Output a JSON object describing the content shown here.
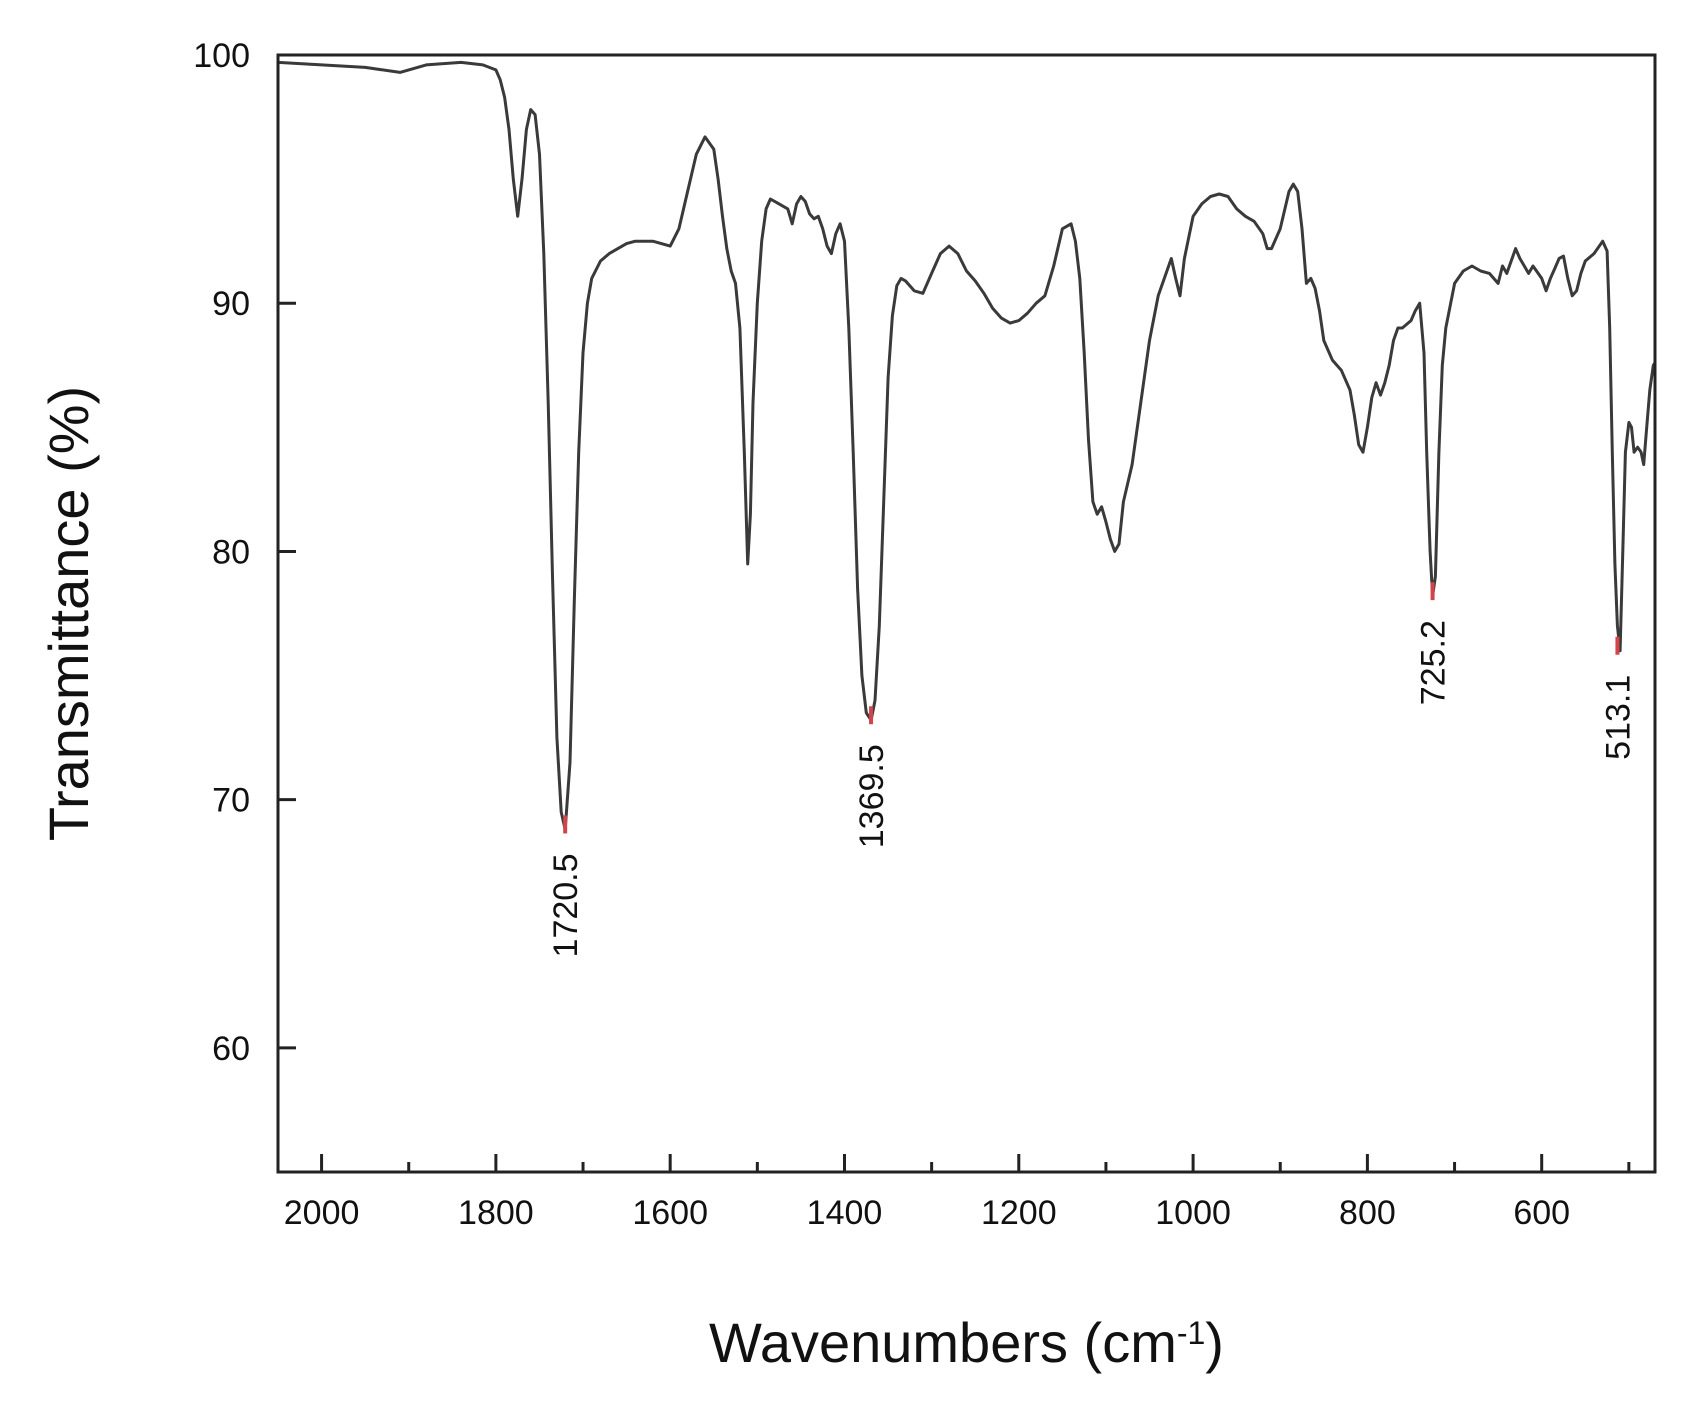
{
  "chart_data": {
    "type": "line",
    "xlabel": "Wavenumbers (cm",
    "xlabel_sup": "-1",
    "xlabel_suffix": ")",
    "ylabel": "Transmittance (%)",
    "xlim": [
      2050,
      470
    ],
    "ylim": [
      55,
      100
    ],
    "x_reversed": true,
    "xticks": [
      2000,
      1800,
      1600,
      1400,
      1200,
      1000,
      800,
      600
    ],
    "xtick_labels": [
      "2000",
      "1800",
      "1600",
      "1400",
      "1200",
      "1000",
      "800",
      "600"
    ],
    "xminor_ticks": [
      1900,
      1700,
      1500,
      1300,
      1100,
      900,
      700,
      500
    ],
    "yticks": [
      60,
      70,
      80,
      90,
      100
    ],
    "ytick_labels": [
      "60",
      "70",
      "80",
      "90",
      "100"
    ],
    "grid": false,
    "line_color": "#3a3a3a",
    "marker_color": "#d0454a",
    "series": [
      {
        "x": [
          2050,
          2000,
          1950,
          1910,
          1880,
          1840,
          1815,
          1800,
          1795,
          1790,
          1785,
          1780,
          1775,
          1770,
          1765,
          1760,
          1755,
          1750,
          1745,
          1740,
          1735,
          1730,
          1725,
          1720.5,
          1715,
          1710,
          1705,
          1700,
          1695,
          1690,
          1680,
          1670,
          1660,
          1650,
          1640,
          1620,
          1600,
          1590,
          1580,
          1570,
          1560,
          1550,
          1545,
          1540,
          1535,
          1530,
          1525,
          1520,
          1515,
          1511,
          1508,
          1505,
          1500,
          1495,
          1490,
          1485,
          1475,
          1465,
          1460,
          1455,
          1450,
          1445,
          1440,
          1435,
          1430,
          1425,
          1420,
          1415,
          1410,
          1405,
          1400,
          1395,
          1390,
          1385,
          1380,
          1375,
          1369.5,
          1365,
          1360,
          1355,
          1350,
          1345,
          1340,
          1335,
          1330,
          1320,
          1310,
          1300,
          1290,
          1280,
          1270,
          1260,
          1250,
          1240,
          1230,
          1220,
          1210,
          1200,
          1190,
          1180,
          1170,
          1160,
          1150,
          1140,
          1135,
          1130,
          1125,
          1120,
          1115,
          1110,
          1105,
          1100,
          1095,
          1090,
          1085,
          1080,
          1070,
          1060,
          1050,
          1040,
          1030,
          1025,
          1020,
          1015,
          1010,
          1000,
          990,
          980,
          970,
          960,
          950,
          940,
          930,
          920,
          915,
          910,
          900,
          890,
          885,
          880,
          875,
          870,
          865,
          860,
          855,
          850,
          840,
          830,
          820,
          815,
          810,
          805,
          800,
          795,
          790,
          785,
          780,
          775,
          770,
          765,
          760,
          750,
          745,
          740,
          735,
          732,
          728,
          725.2,
          722,
          718,
          714,
          710,
          700,
          690,
          680,
          670,
          660,
          650,
          645,
          640,
          635,
          630,
          625,
          620,
          615,
          610,
          600,
          595,
          590,
          585,
          580,
          575,
          570,
          565,
          560,
          555,
          550,
          540,
          530,
          525,
          522,
          519,
          516,
          513.1,
          510,
          507,
          504,
          500,
          497,
          494,
          490,
          486,
          483,
          480,
          476,
          472,
          470
        ],
        "y": [
          99.7,
          99.6,
          99.5,
          99.3,
          99.6,
          99.7,
          99.6,
          99.4,
          99.0,
          98.3,
          97.0,
          95.0,
          93.5,
          95.0,
          97.0,
          97.8,
          97.6,
          96.0,
          92.0,
          86.0,
          79.0,
          72.5,
          69.5,
          68.8,
          71.5,
          78.0,
          84.0,
          88.0,
          90.0,
          91.0,
          91.7,
          92.0,
          92.2,
          92.4,
          92.5,
          92.5,
          92.3,
          93.0,
          94.5,
          96.0,
          96.7,
          96.2,
          95.0,
          93.5,
          92.2,
          91.3,
          90.8,
          89.0,
          84.0,
          79.5,
          81.5,
          86.0,
          90.0,
          92.5,
          93.8,
          94.2,
          94.0,
          93.8,
          93.2,
          94.0,
          94.3,
          94.1,
          93.6,
          93.4,
          93.5,
          93.0,
          92.3,
          92.0,
          92.8,
          93.2,
          92.5,
          89.0,
          84.0,
          78.5,
          75.0,
          73.5,
          73.2,
          74.0,
          77.0,
          82.0,
          87.0,
          89.5,
          90.7,
          91.0,
          90.9,
          90.5,
          90.4,
          91.2,
          92.0,
          92.3,
          92.0,
          91.3,
          90.9,
          90.4,
          89.8,
          89.4,
          89.2,
          89.3,
          89.6,
          90.0,
          90.3,
          91.5,
          93.0,
          93.2,
          92.5,
          91.0,
          88.0,
          84.5,
          82.0,
          81.5,
          81.8,
          81.2,
          80.5,
          80.0,
          80.3,
          82.0,
          83.5,
          86.0,
          88.5,
          90.3,
          91.3,
          91.8,
          91.0,
          90.3,
          91.8,
          93.5,
          94.0,
          94.3,
          94.4,
          94.3,
          93.8,
          93.5,
          93.3,
          92.8,
          92.2,
          92.2,
          93.0,
          94.5,
          94.8,
          94.5,
          93.0,
          90.8,
          91.0,
          90.6,
          89.7,
          88.5,
          87.7,
          87.3,
          86.5,
          85.5,
          84.3,
          84.0,
          85.0,
          86.2,
          86.8,
          86.3,
          86.8,
          87.5,
          88.5,
          89.0,
          89.0,
          89.3,
          89.7,
          90.0,
          88.0,
          84.0,
          80.0,
          78.2,
          79.0,
          84.0,
          87.5,
          89.0,
          90.8,
          91.3,
          91.5,
          91.3,
          91.2,
          90.8,
          91.5,
          91.2,
          91.7,
          92.2,
          91.8,
          91.5,
          91.2,
          91.5,
          91.0,
          90.5,
          91.0,
          91.4,
          91.8,
          91.9,
          91.0,
          90.3,
          90.5,
          91.2,
          91.7,
          92.0,
          92.5,
          92.1,
          89.0,
          84.0,
          79.5,
          77.0,
          76.0,
          80.0,
          84.0,
          85.2,
          85.0,
          84.0,
          84.2,
          84.0,
          83.5,
          84.8,
          86.5,
          87.5,
          87.6
        ]
      }
    ],
    "annotations": [
      {
        "x": 1720.5,
        "y": 68.8,
        "label": "1720.5"
      },
      {
        "x": 1369.5,
        "y": 73.2,
        "label": "1369.5"
      },
      {
        "x": 725.2,
        "y": 78.2,
        "label": "725.2"
      },
      {
        "x": 513.1,
        "y": 76.0,
        "label": "513.1"
      }
    ]
  }
}
